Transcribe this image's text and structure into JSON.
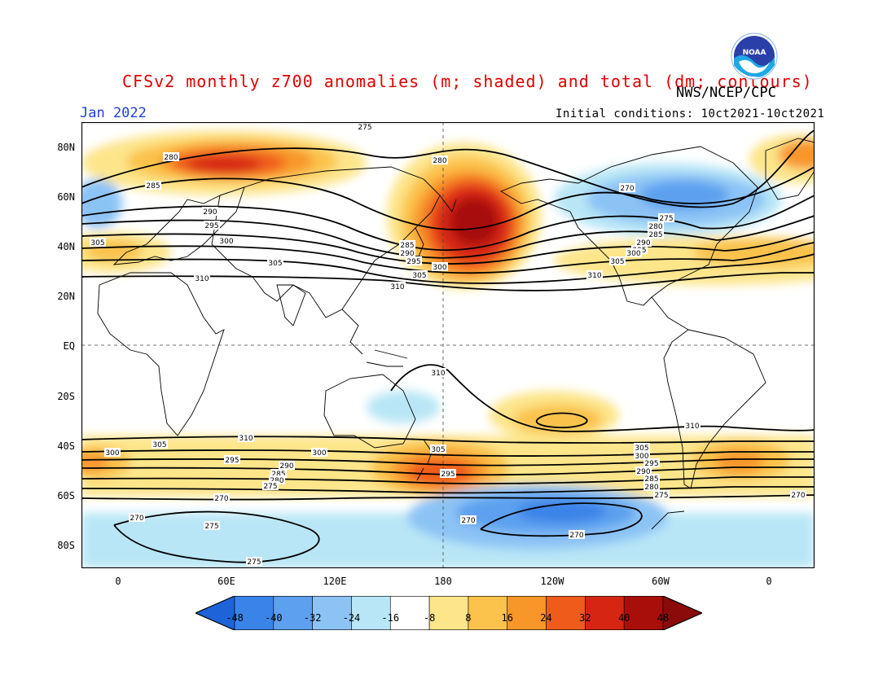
{
  "title": "CFSv2 monthly z700 anomalies (m; shaded) and total (dm; contours)",
  "agency": "NWS/NCEP/CPC",
  "month": "Jan 2022",
  "initial_conditions": "Initial conditions: 10ct2021-10ct2021",
  "logo_text": "NOAA",
  "lat_labels": [
    "80N",
    "60N",
    "40N",
    "20N",
    "EQ",
    "20S",
    "40S",
    "60S",
    "80S"
  ],
  "lon_labels": [
    "0",
    "60E",
    "120E",
    "180",
    "120W",
    "60W",
    "0"
  ],
  "colorbar": {
    "ticks": [
      "-48",
      "-40",
      "-32",
      "-24",
      "-16",
      "-8",
      "8",
      "16",
      "24",
      "32",
      "40",
      "48"
    ],
    "colors": [
      "#1e63d8",
      "#3a83e8",
      "#5ca0ef",
      "#8cc3f5",
      "#b8e6f6",
      "#ffffff",
      "#fde58a",
      "#fbc24c",
      "#f8962a",
      "#ef5b1b",
      "#d62612",
      "#a80f0a",
      "#8b0a0a"
    ]
  },
  "contour_labels": [
    "275",
    "280",
    "285",
    "290",
    "295",
    "300",
    "305",
    "310",
    "270"
  ]
}
